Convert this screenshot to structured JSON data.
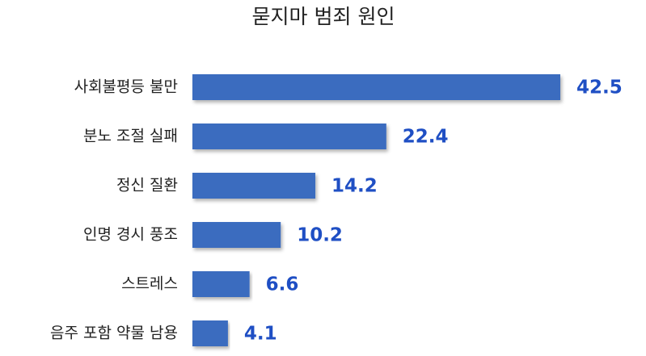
{
  "chart_data": {
    "type": "bar",
    "orientation": "horizontal",
    "title": "묻지마 범죄 원인",
    "categories": [
      "사회불평등 불만",
      "분노 조절 실패",
      "정신 질환",
      "인명 경시 풍조",
      "스트레스",
      "음주 포함 약물 남용"
    ],
    "values": [
      42.5,
      22.4,
      14.2,
      10.2,
      6.6,
      4.1
    ],
    "color": "#3a6cbf",
    "label_color": "#1f4fc4"
  }
}
